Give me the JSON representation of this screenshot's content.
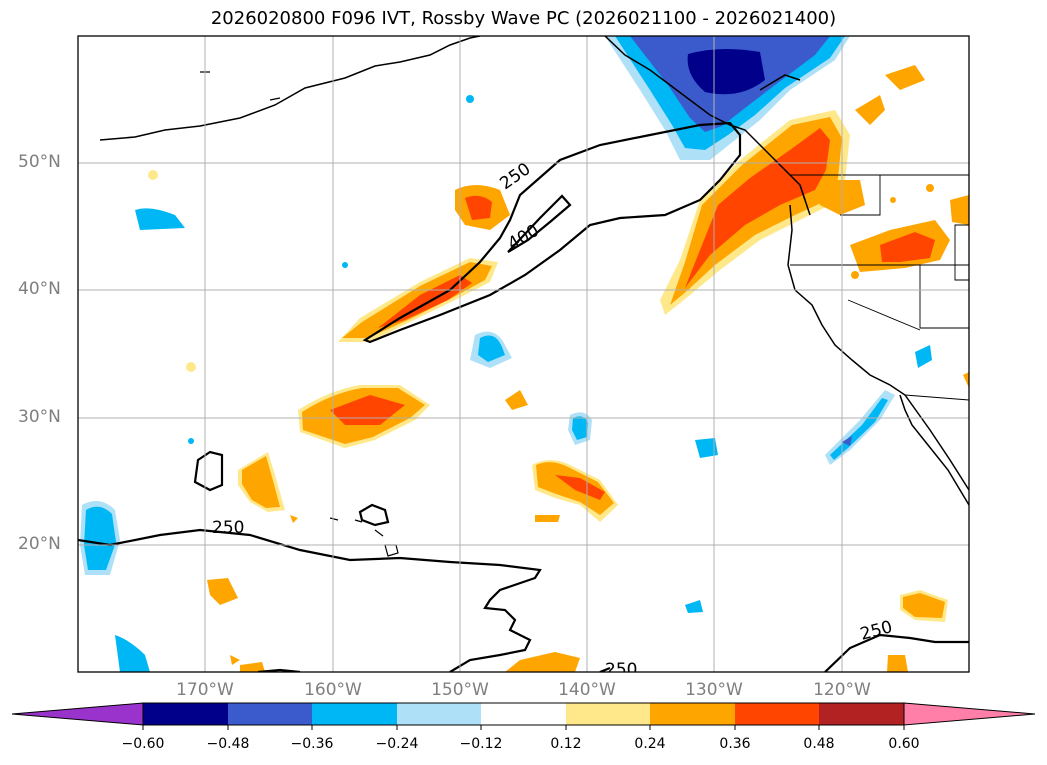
{
  "title": "2026020800 F096 IVT, Rossby Wave PC (2026021100 - 2026021400)",
  "map": {
    "lat_labels": [
      "50°N",
      "40°N",
      "30°N",
      "20°N"
    ],
    "lon_labels": [
      "170°W",
      "160°W",
      "150°W",
      "140°W",
      "130°W",
      "120°W"
    ],
    "contour_labels": [
      "250",
      "400",
      "250",
      "250",
      "250"
    ],
    "colors": {
      "neg_extreme": "#9a33cc",
      "neg_060": "#00008b",
      "neg_048": "#3b5bcc",
      "neg_036": "#00b7f5",
      "neg_024": "#aee0f8",
      "neutral": "#ffffff",
      "pos_012": "#ffe88a",
      "pos_024": "#ffa500",
      "pos_036": "#ff4500",
      "pos_048": "#b22222",
      "pos_060": "#ff7fa8"
    }
  },
  "colorbar": {
    "ticks": [
      "−0.60",
      "−0.48",
      "−0.36",
      "−0.24",
      "−0.12",
      "0.12",
      "0.24",
      "0.36",
      "0.48",
      "0.60"
    ]
  }
}
